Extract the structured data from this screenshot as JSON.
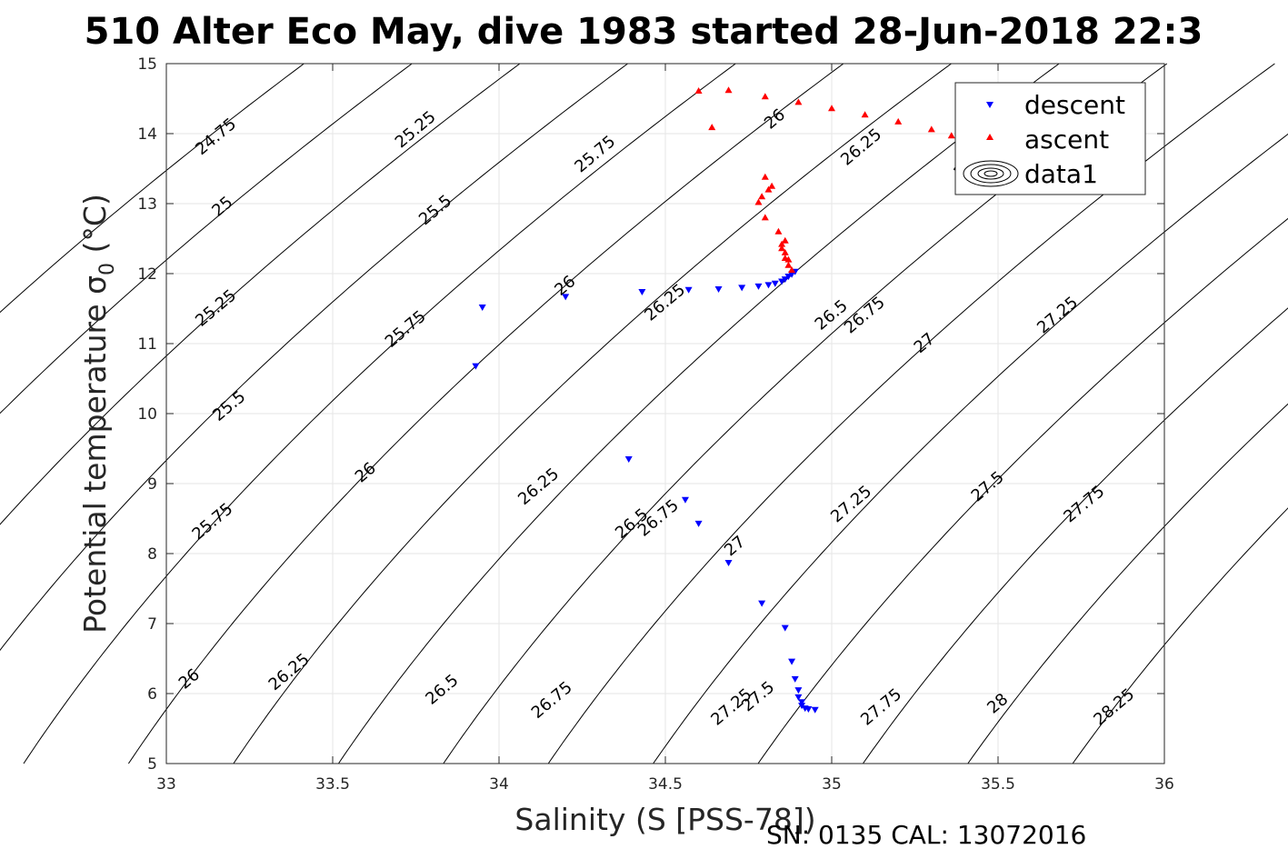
{
  "chart_data": {
    "type": "scatter",
    "title": "510 Alter Eco May, dive 1983 started 28-Jun-2018 22:3",
    "xlabel": "Salinity (S [PSS-78])",
    "ylabel_main": "Potential temperature σ",
    "ylabel_sub": "0",
    "ylabel_tail": " (°C)",
    "xlim": [
      33,
      36
    ],
    "ylim": [
      5,
      15
    ],
    "xticks": [
      33,
      33.5,
      34,
      34.5,
      35,
      35.5,
      36
    ],
    "xtick_labels": [
      "33",
      "33.5",
      "34",
      "34.5",
      "35",
      "35.5",
      "36"
    ],
    "yticks": [
      5,
      6,
      7,
      8,
      9,
      10,
      11,
      12,
      13,
      14,
      15
    ],
    "ytick_labels": [
      "5",
      "6",
      "7",
      "8",
      "9",
      "10",
      "11",
      "12",
      "13",
      "14",
      "15"
    ],
    "grid": true,
    "legend_position": "top-right",
    "contour_levels": [
      24.75,
      25,
      25.25,
      25.5,
      25.75,
      26,
      26.25,
      26.5,
      26.75,
      27,
      27.25,
      27.5,
      27.75,
      28,
      28.25
    ],
    "contour_labels": [
      {
        "text": "24.75",
        "x": 33.15,
        "y": 13.95
      },
      {
        "text": "25",
        "x": 33.17,
        "y": 12.95
      },
      {
        "text": "25.25",
        "x": 33.15,
        "y": 11.5
      },
      {
        "text": "25.5",
        "x": 33.19,
        "y": 10.1
      },
      {
        "text": "25.75",
        "x": 33.14,
        "y": 8.45
      },
      {
        "text": "26",
        "x": 33.07,
        "y": 6.2
      },
      {
        "text": "25.25",
        "x": 33.75,
        "y": 14.05
      },
      {
        "text": "25.5",
        "x": 33.81,
        "y": 12.9
      },
      {
        "text": "25.75",
        "x": 33.72,
        "y": 11.2
      },
      {
        "text": "26",
        "x": 33.6,
        "y": 9.15
      },
      {
        "text": "26.25",
        "x": 33.37,
        "y": 6.3
      },
      {
        "text": "25.75",
        "x": 34.29,
        "y": 13.7
      },
      {
        "text": "26",
        "x": 34.2,
        "y": 11.82
      },
      {
        "text": "26.25",
        "x": 34.12,
        "y": 8.95
      },
      {
        "text": "26.5",
        "x": 33.83,
        "y": 6.05
      },
      {
        "text": "26",
        "x": 34.83,
        "y": 14.2
      },
      {
        "text": "26.25",
        "x": 34.5,
        "y": 11.58
      },
      {
        "text": "26.5",
        "x": 34.4,
        "y": 8.42
      },
      {
        "text": "26.75",
        "x": 34.16,
        "y": 5.9
      },
      {
        "text": "26.25",
        "x": 35.09,
        "y": 13.8
      },
      {
        "text": "26.5",
        "x": 35,
        "y": 11.4
      },
      {
        "text": "26.75",
        "x": 34.48,
        "y": 8.5
      },
      {
        "text": "27.25",
        "x": 34.7,
        "y": 5.8
      },
      {
        "text": "26",
        "x": 35.4,
        "y": 13.5
      },
      {
        "text": "26.75",
        "x": 35.1,
        "y": 11.4
      },
      {
        "text": "27",
        "x": 34.71,
        "y": 8.1
      },
      {
        "text": "27.5",
        "x": 34.78,
        "y": 5.95
      },
      {
        "text": "27",
        "x": 35.28,
        "y": 11.0
      },
      {
        "text": "27.25",
        "x": 35.06,
        "y": 8.7
      },
      {
        "text": "27.75",
        "x": 35.15,
        "y": 5.8
      },
      {
        "text": "27.25",
        "x": 35.68,
        "y": 11.4
      },
      {
        "text": "27.5",
        "x": 35.47,
        "y": 8.95
      },
      {
        "text": "28",
        "x": 35.5,
        "y": 5.85
      },
      {
        "text": "27.75",
        "x": 35.76,
        "y": 8.7
      },
      {
        "text": "28.25",
        "x": 35.85,
        "y": 5.8
      }
    ],
    "series": [
      {
        "name": "descent",
        "marker": "triangle-down",
        "color": "#0000ff",
        "points": [
          [
            33.95,
            11.52
          ],
          [
            33.93,
            10.68
          ],
          [
            34.2,
            11.67
          ],
          [
            34.43,
            11.74
          ],
          [
            34.57,
            11.77
          ],
          [
            34.66,
            11.78
          ],
          [
            34.73,
            11.8
          ],
          [
            34.78,
            11.82
          ],
          [
            34.81,
            11.84
          ],
          [
            34.83,
            11.86
          ],
          [
            34.85,
            11.89
          ],
          [
            34.86,
            11.92
          ],
          [
            34.87,
            11.96
          ],
          [
            34.88,
            11.99
          ],
          [
            34.89,
            12.03
          ],
          [
            34.39,
            9.35
          ],
          [
            34.56,
            8.77
          ],
          [
            34.6,
            8.43
          ],
          [
            34.69,
            7.87
          ],
          [
            34.79,
            7.29
          ],
          [
            34.86,
            6.94
          ],
          [
            34.88,
            6.46
          ],
          [
            34.89,
            6.21
          ],
          [
            34.9,
            6.05
          ],
          [
            34.9,
            5.95
          ],
          [
            34.91,
            5.88
          ],
          [
            34.91,
            5.83
          ],
          [
            34.92,
            5.79
          ],
          [
            34.93,
            5.78
          ],
          [
            34.95,
            5.77
          ]
        ]
      },
      {
        "name": "ascent",
        "marker": "triangle-up",
        "color": "#ff0000",
        "points": [
          [
            34.6,
            14.61
          ],
          [
            34.64,
            14.09
          ],
          [
            34.8,
            13.38
          ],
          [
            34.82,
            13.25
          ],
          [
            34.81,
            13.2
          ],
          [
            34.79,
            13.1
          ],
          [
            34.78,
            13.02
          ],
          [
            34.8,
            12.8
          ],
          [
            34.84,
            12.6
          ],
          [
            34.85,
            12.42
          ],
          [
            34.86,
            12.47
          ],
          [
            34.86,
            12.3
          ],
          [
            34.87,
            12.2
          ],
          [
            34.87,
            12.12
          ],
          [
            34.88,
            12.05
          ],
          [
            34.85,
            12.36
          ],
          [
            34.86,
            12.22
          ],
          [
            34.69,
            14.62
          ],
          [
            34.8,
            14.53
          ],
          [
            34.9,
            14.45
          ],
          [
            35.0,
            14.36
          ],
          [
            35.1,
            14.27
          ],
          [
            35.2,
            14.17
          ],
          [
            35.3,
            14.06
          ],
          [
            35.36,
            13.97
          ],
          [
            35.4,
            13.93
          ]
        ]
      },
      {
        "name": "data1",
        "marker": "contour",
        "color": "#000000",
        "points": []
      }
    ],
    "footnote": "SN: 0135  CAL: 13072016"
  }
}
